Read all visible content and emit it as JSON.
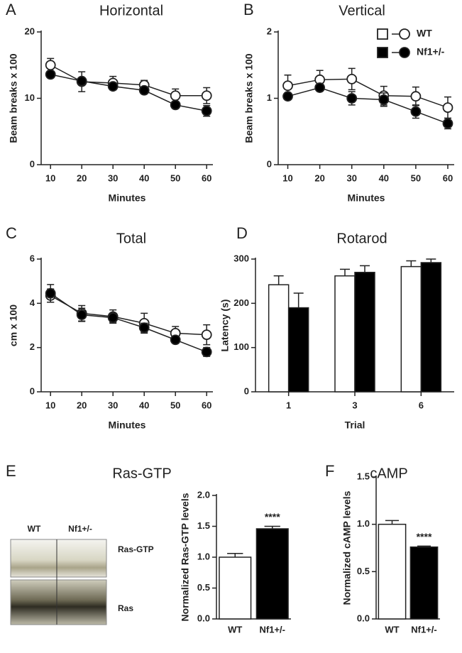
{
  "chart_data": [
    {
      "type": "line",
      "panel": "A",
      "title": "Horizontal",
      "x_label": "Minutes",
      "y_label": "Beam breaks x 100",
      "x": [
        10,
        20,
        30,
        40,
        50,
        60
      ],
      "xlim": [
        7,
        62
      ],
      "xticks": [
        10,
        20,
        30,
        40,
        50,
        60
      ],
      "ylim": [
        0,
        20
      ],
      "yticks": [
        0,
        10,
        20
      ],
      "series": [
        {
          "color": "#ffffff",
          "values": [
            15.0,
            12.5,
            12.3,
            12.0,
            10.4,
            10.4
          ],
          "errors": [
            1.0,
            1.5,
            1.0,
            0.7,
            1.0,
            1.2
          ]
        },
        {
          "color": "#000000",
          "values": [
            13.6,
            12.6,
            11.8,
            11.2,
            9.0,
            8.1
          ],
          "errors": [
            0.5,
            0.5,
            0.5,
            0.5,
            0.5,
            0.8
          ]
        }
      ]
    },
    {
      "type": "line",
      "panel": "B",
      "title": "Vertical",
      "x_label": "Minutes",
      "y_label": "Beam breaks x 100",
      "x": [
        10,
        20,
        30,
        40,
        50,
        60
      ],
      "xlim": [
        7,
        62
      ],
      "xticks": [
        10,
        20,
        30,
        40,
        50,
        60
      ],
      "ylim": [
        0,
        2
      ],
      "yticks": [
        0,
        1,
        2
      ],
      "legend": "top-right",
      "series": [
        {
          "name": "WT",
          "color": "#ffffff",
          "values": [
            1.19,
            1.28,
            1.29,
            1.04,
            1.03,
            0.86
          ],
          "errors": [
            0.16,
            0.14,
            0.16,
            0.14,
            0.14,
            0.16
          ]
        },
        {
          "name": "Nf1+/-",
          "color": "#000000",
          "values": [
            1.03,
            1.16,
            1.0,
            0.98,
            0.8,
            0.62
          ],
          "errors": [
            0.05,
            0.05,
            0.1,
            0.1,
            0.1,
            0.08
          ]
        }
      ]
    },
    {
      "type": "line",
      "panel": "C",
      "title": "Total",
      "x_label": "Minutes",
      "y_label": "cm x 100",
      "x": [
        10,
        20,
        30,
        40,
        50,
        60
      ],
      "xlim": [
        7,
        62
      ],
      "xticks": [
        10,
        20,
        30,
        40,
        50,
        60
      ],
      "ylim": [
        0,
        6
      ],
      "yticks": [
        0,
        2,
        4,
        6
      ],
      "series": [
        {
          "color": "#ffffff",
          "values": [
            4.35,
            3.55,
            3.4,
            3.1,
            2.65,
            2.58
          ],
          "errors": [
            0.3,
            0.35,
            0.3,
            0.45,
            0.3,
            0.45
          ]
        },
        {
          "color": "#000000",
          "values": [
            4.45,
            3.48,
            3.35,
            2.9,
            2.35,
            1.8
          ],
          "errors": [
            0.4,
            0.3,
            0.2,
            0.2,
            0.1,
            0.2
          ]
        }
      ]
    },
    {
      "type": "bar",
      "panel": "D",
      "title": "Rotarod",
      "x_label": "Trial",
      "y_label": "Latency (s)",
      "categories": [
        "1",
        "3",
        "6"
      ],
      "ylim": [
        0,
        300
      ],
      "yticks": [
        0,
        100,
        200,
        300
      ],
      "series": [
        {
          "color": "#ffffff",
          "values": [
            242,
            262,
            283
          ],
          "errors": [
            20,
            15,
            13
          ]
        },
        {
          "color": "#000000",
          "values": [
            190,
            270,
            292
          ],
          "errors": [
            33,
            15,
            8
          ]
        }
      ]
    },
    {
      "type": "bar",
      "panel": "E",
      "title": "Ras-GTP",
      "y_label": "Normalized Ras-GTP levels",
      "blot": {
        "lanes": [
          "WT",
          "Nf1+/-"
        ],
        "bands": [
          "Ras-GTP",
          "Ras"
        ]
      },
      "categories": [
        "WT",
        "Nf1+/-"
      ],
      "colors": [
        "#ffffff",
        "#000000"
      ],
      "annotation": "****",
      "ylim": [
        0,
        2
      ],
      "yticks": [
        {
          "value": 0,
          "label": "0.0"
        },
        0.5,
        {
          "value": 1,
          "label": "1.0"
        },
        1.5,
        {
          "value": 2,
          "label": "2.0"
        }
      ],
      "series": [
        {
          "values": [
            1.0,
            1.46
          ],
          "errors": [
            0.06,
            0.04
          ]
        }
      ]
    },
    {
      "type": "bar",
      "panel": "F",
      "title": "cAMP",
      "y_label": "Normalized cAMP levels",
      "categories": [
        "WT",
        "Nf1+/-"
      ],
      "colors": [
        "#ffffff",
        "#000000"
      ],
      "annotation": "****",
      "ylim": [
        0,
        1.5
      ],
      "yticks": [
        {
          "value": 0,
          "label": "0.0"
        },
        0.5,
        {
          "value": 1,
          "label": "1.0"
        },
        1.5
      ],
      "series": [
        {
          "values": [
            1.0,
            0.76
          ],
          "errors": [
            0.04,
            0.01
          ]
        }
      ]
    }
  ]
}
